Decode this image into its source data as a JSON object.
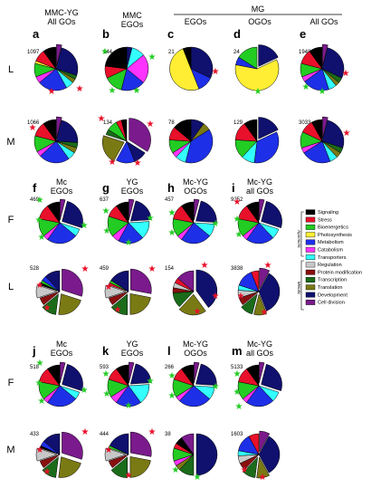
{
  "colors": {
    "Signaling": "#000000",
    "Stress": "#e8102a",
    "Bioenergetics": "#22cc22",
    "Photosynthesis": "#ffee33",
    "Metabolism": "#1e2fe8",
    "Catabolism": "#ff33ff",
    "Transporters": "#33ffff",
    "Regulation": "#c8c8c8",
    "Protein modification": "#8a1010",
    "Transcription": "#1a6b1a",
    "Translation": "#7a7a14",
    "Development": "#10106e",
    "Cell division": "#7a1a8c"
  },
  "headers": [
    {
      "id": "a",
      "line1": "MMC-YG",
      "line2": "All GOs"
    },
    {
      "id": "b",
      "line1": "MMC",
      "line2": "EGOs"
    },
    {
      "id": "mg",
      "line1": "MG",
      "line2": ""
    },
    {
      "id": "c",
      "line1": "",
      "line2": "EGOs"
    },
    {
      "id": "d",
      "line1": "",
      "line2": "OGOs"
    },
    {
      "id": "e",
      "line1": "",
      "line2": "All GOs"
    },
    {
      "id": "f",
      "line1": "Mc",
      "line2": "EGOs"
    },
    {
      "id": "g",
      "line1": "YG",
      "line2": "EGOs"
    },
    {
      "id": "h",
      "line1": "Mc-YG",
      "line2": "OGOs"
    },
    {
      "id": "i",
      "line1": "Mc-YG",
      "line2": "all GOs"
    },
    {
      "id": "j",
      "line1": "Mc",
      "line2": "EGOs"
    },
    {
      "id": "k",
      "line1": "YG",
      "line2": "EGOs"
    },
    {
      "id": "l",
      "line1": "Mc-YG",
      "line2": "OGOs"
    },
    {
      "id": "m",
      "line1": "Mc-YG",
      "line2": "all GOs"
    }
  ],
  "row_labels": [
    "L",
    "M",
    "F",
    "L",
    "F",
    "M"
  ],
  "counts": {
    "a_L": "1097",
    "b_L": "144",
    "c_L": "21",
    "d_L": "24",
    "e_L": "1948",
    "a_M": "1066",
    "b_M": "134",
    "c_M": "78",
    "d_M": "129",
    "e_M": "3033",
    "f_F": "469",
    "g_F": "637",
    "h_F": "457",
    "i_F": "9252",
    "f_L": "528",
    "g_L": "459",
    "h_L": "154",
    "i_L": "3838",
    "j_F": "518",
    "k_F": "593",
    "l_F": "266",
    "m_F": "5133",
    "j_M": "433",
    "k_M": "444",
    "l_M": "38",
    "m_M": "1603"
  },
  "legend": {
    "items": [
      "Signaling",
      "Stress",
      "Bioenergetics",
      "Photosynthesis",
      "Metabolism",
      "Catabolism",
      "Transporters",
      "Regulation",
      "Protein modification",
      "Transcription",
      "Translation",
      "Development",
      "Cell division"
    ],
    "group_apomictic": "Apomictic",
    "group_meiotic": "Meiotic"
  }
}
